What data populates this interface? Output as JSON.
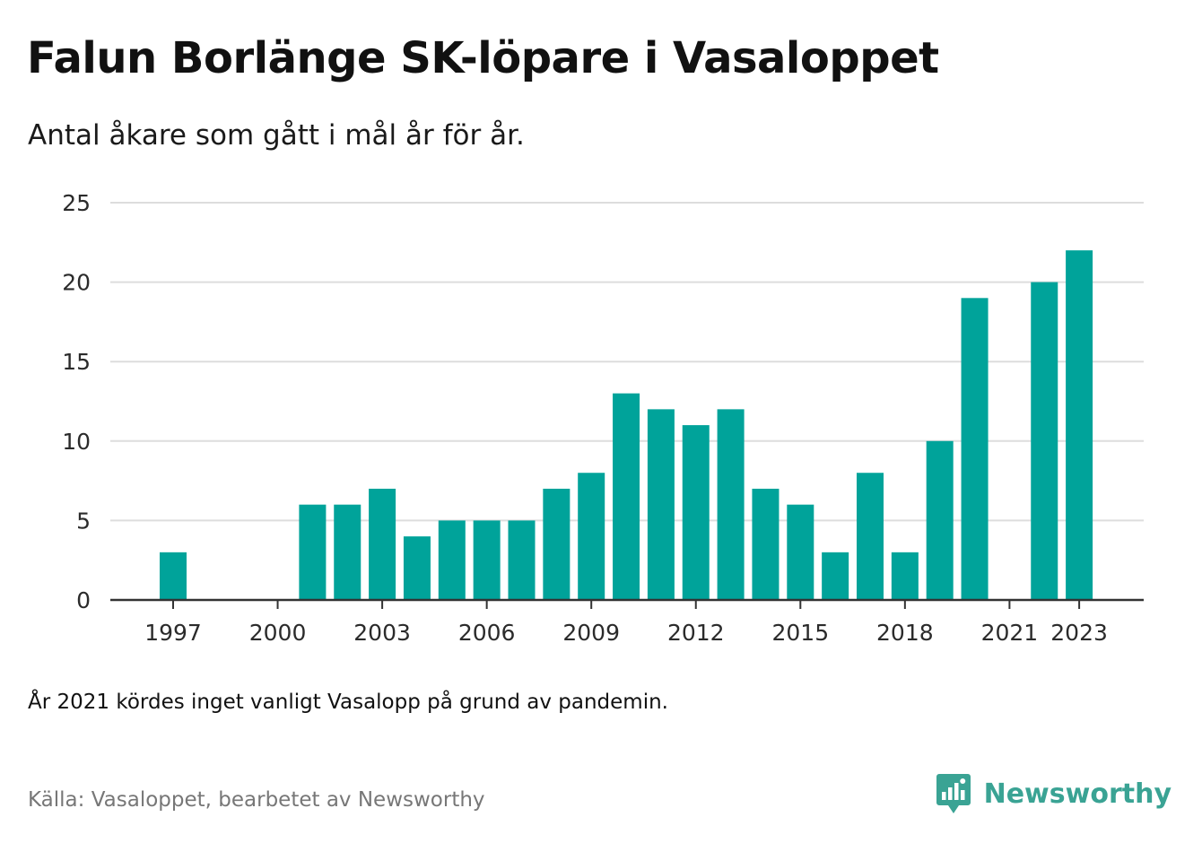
{
  "header": {
    "title": "Falun Borlänge SK-löpare i Vasaloppet",
    "subtitle": "Antal åkare som gått i mål år för år."
  },
  "chart_data": {
    "type": "bar",
    "title": "Falun Borlänge SK-löpare i Vasaloppet",
    "subtitle": "Antal åkare som gått i mål år för år.",
    "xlabel": "",
    "ylabel": "",
    "categories": [
      1997,
      1998,
      1999,
      2000,
      2001,
      2002,
      2003,
      2004,
      2005,
      2006,
      2007,
      2008,
      2009,
      2010,
      2011,
      2012,
      2013,
      2014,
      2015,
      2016,
      2017,
      2018,
      2019,
      2020,
      2021,
      2022,
      2023
    ],
    "values": [
      3,
      0,
      0,
      0,
      6,
      6,
      7,
      4,
      5,
      5,
      5,
      7,
      8,
      13,
      12,
      11,
      12,
      7,
      6,
      3,
      8,
      3,
      10,
      19,
      0,
      20,
      22
    ],
    "x_ticks": [
      "1997",
      "2000",
      "2003",
      "2006",
      "2009",
      "2012",
      "2015",
      "2018",
      "2021",
      "2023"
    ],
    "y_ticks": [
      0,
      5,
      10,
      15,
      20,
      25
    ],
    "ylim": [
      0,
      25
    ],
    "grid": true,
    "legend": "none",
    "bar_color": "#00a39a",
    "gridline_color": "#dddddd",
    "axis_color": "#333333"
  },
  "footer": {
    "note": "År 2021 kördes inget vanligt Vasalopp på grund av pandemin.",
    "source": "Källa: Vasaloppet, bearbetet av Newsworthy",
    "brand_name": "Newsworthy",
    "brand_icon": "newsworthy-logo-icon",
    "brand_color": "#3aa394"
  }
}
